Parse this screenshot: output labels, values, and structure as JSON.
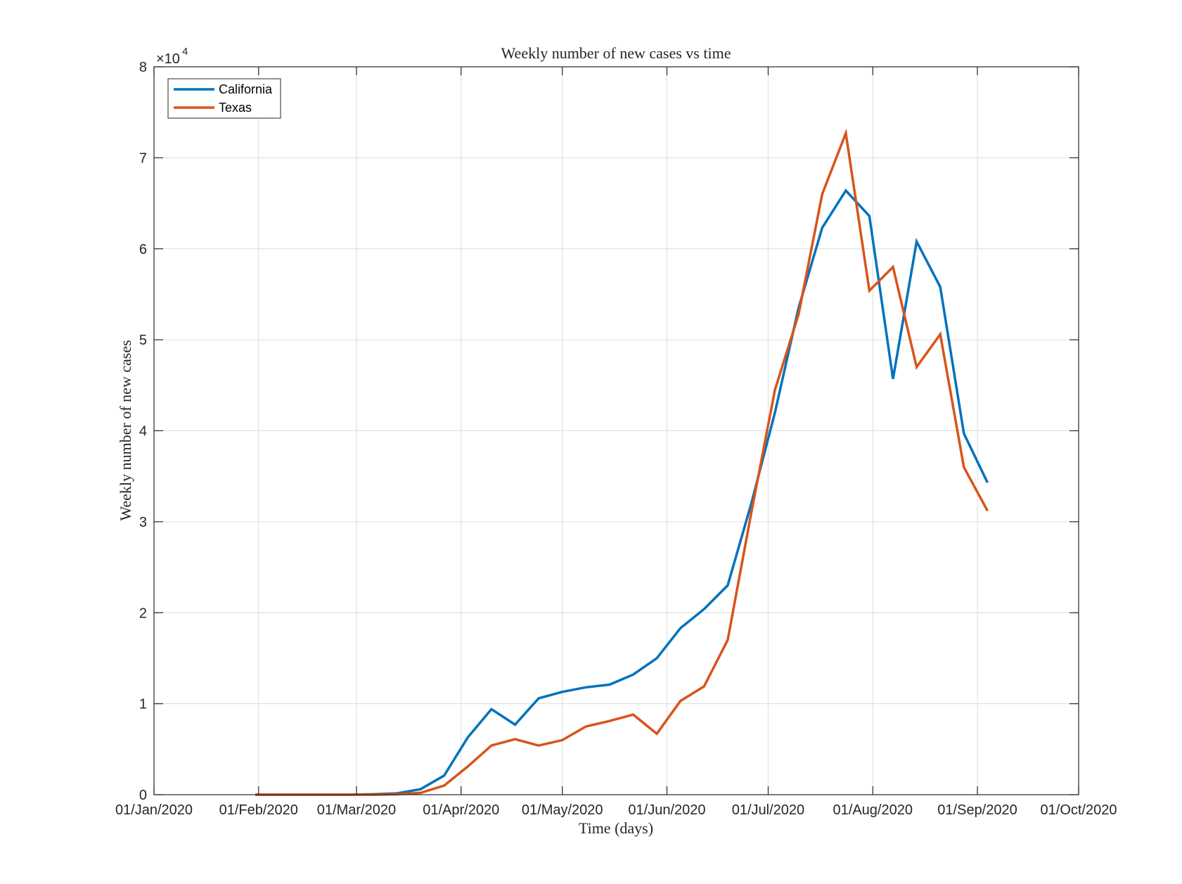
{
  "chart_data": {
    "type": "line",
    "title": "Weekly number of new cases vs time",
    "xlabel": "Time (days)",
    "ylabel": "Weekly number of new cases",
    "y_exponent_label": "×10",
    "y_exponent_power": "4",
    "ylim": [
      0,
      80000
    ],
    "y_ticks": [
      0,
      10000,
      20000,
      30000,
      40000,
      50000,
      60000,
      70000,
      80000
    ],
    "y_tick_labels": [
      "0",
      "1",
      "2",
      "3",
      "4",
      "5",
      "6",
      "7",
      "8"
    ],
    "xlim": [
      "2020-01-01",
      "2020-10-01"
    ],
    "x_ticks": [
      "2020-01-01",
      "2020-02-01",
      "2020-03-01",
      "2020-04-01",
      "2020-05-01",
      "2020-06-01",
      "2020-07-01",
      "2020-08-01",
      "2020-09-01",
      "2020-10-01"
    ],
    "x_tick_labels": [
      "01/Jan/2020",
      "01/Feb/2020",
      "01/Mar/2020",
      "01/Apr/2020",
      "01/May/2020",
      "01/Jun/2020",
      "01/Jul/2020",
      "01/Aug/2020",
      "01/Sep/2020",
      "01/Oct/2020"
    ],
    "grid": true,
    "legend_position": "top-left",
    "x": [
      "2020-01-31",
      "2020-02-07",
      "2020-02-14",
      "2020-02-21",
      "2020-02-28",
      "2020-03-06",
      "2020-03-13",
      "2020-03-20",
      "2020-03-27",
      "2020-04-03",
      "2020-04-10",
      "2020-04-17",
      "2020-04-24",
      "2020-05-01",
      "2020-05-08",
      "2020-05-15",
      "2020-05-22",
      "2020-05-29",
      "2020-06-05",
      "2020-06-12",
      "2020-06-19",
      "2020-06-26",
      "2020-07-03",
      "2020-07-10",
      "2020-07-17",
      "2020-07-24",
      "2020-07-31",
      "2020-08-07",
      "2020-08-14",
      "2020-08-21",
      "2020-08-28",
      "2020-09-04"
    ],
    "series": [
      {
        "name": "California",
        "color": "#0072BD",
        "values": [
          0,
          0,
          0,
          0,
          0,
          50,
          150,
          600,
          2100,
          6300,
          9400,
          7700,
          10600,
          11300,
          11800,
          12100,
          13200,
          15000,
          18300,
          20400,
          23000,
          32000,
          42000,
          53500,
          62300,
          66400,
          63600,
          45700,
          60800,
          55800,
          39700,
          34300
        ]
      },
      {
        "name": "Texas",
        "color": "#D95319",
        "values": [
          0,
          0,
          0,
          0,
          0,
          0,
          50,
          200,
          1000,
          3100,
          5400,
          6100,
          5400,
          6000,
          7500,
          8100,
          8800,
          6700,
          10300,
          11900,
          17000,
          31000,
          44500,
          52800,
          66000,
          72700,
          55400,
          58000,
          47000,
          50600,
          36000,
          31200
        ]
      }
    ]
  }
}
